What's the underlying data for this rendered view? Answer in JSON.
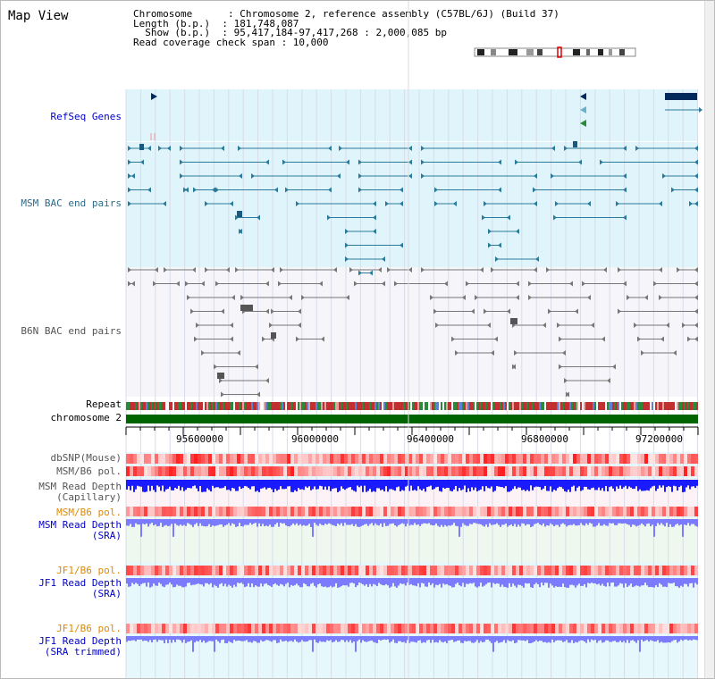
{
  "title": "Map View",
  "info": {
    "line1": "Chromosome      : Chromosome 2, reference assembly (C57BL/6J) (Build 37)",
    "line2": "Length (b.p.)  : 181,748,087",
    "line3": "  Show (b.p.)  : 95,417,184-97,417,268 : 2,000,085 bp",
    "line4": "Read coverage check span : 10,000"
  },
  "tracks": {
    "refseq": "RefSeq Genes",
    "msm_bac": "MSM BAC end pairs",
    "b6n_bac": "B6N BAC end pairs",
    "repeat": "Repeat",
    "chromosome": "chromosome 2",
    "dbsnp": "dbSNP(Mouse)",
    "msm_b6_pol_1": "MSM/B6 pol.",
    "msm_read_depth_cap": "MSM Read Depth\n(Capillary)",
    "msm_b6_pol_2": "MSM/B6 pol.",
    "msm_read_depth_sra": "MSM Read Depth\n(SRA)",
    "jf1_b6_pol_1": "JF1/B6 pol.",
    "jf1_read_depth_sra": "JF1 Read Depth\n(SRA)",
    "jf1_b6_pol_2": "JF1/B6 pol.",
    "jf1_read_depth_trim": "JF1 Read Depth\n(SRA trimmed)"
  },
  "axis": {
    "ticks": [
      "95600000",
      "96000000",
      "96400000",
      "96800000",
      "97200000"
    ]
  },
  "colors": {
    "panel_light_blue": "#e0f4fb",
    "panel_pink": "#fdf2f6",
    "panel_green": "#eef8ee",
    "chromosome_green": "#006400",
    "gene_navy": "#002a5c",
    "msm_teal": "#2b7a9a",
    "b6n_gray": "#777777",
    "depth_blue": "#1a1aff",
    "sra_blue": "#7b7bff"
  }
}
